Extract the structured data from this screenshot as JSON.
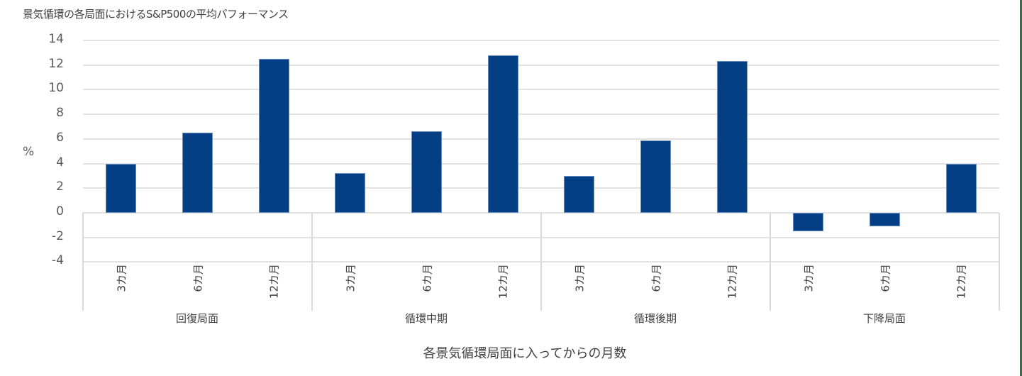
{
  "chart_data": {
    "type": "bar",
    "title": "景気循環の各局面におけるS&P500の平均パフォーマンス",
    "xlabel": "各景気循環局面に入ってからの月数",
    "ylabel": "%",
    "ylim": [
      -4,
      14
    ],
    "yticks": [
      "14",
      "12",
      "10",
      "8",
      "6",
      "4",
      "2",
      "0",
      "-2",
      "-4"
    ],
    "grid": true,
    "legend": "none",
    "bar_color": "#043f85",
    "groups": [
      "回復局面",
      "循環中期",
      "循環後期",
      "下降局面"
    ],
    "categories": [
      "3カ月",
      "6カ月",
      "12カ月",
      "3カ月",
      "6カ月",
      "12カ月",
      "3カ月",
      "6カ月",
      "12カ月",
      "3カ月",
      "6カ月",
      "12カ月"
    ],
    "values": [
      4.0,
      6.5,
      12.5,
      3.2,
      6.6,
      12.8,
      3.0,
      5.9,
      12.3,
      -1.5,
      -1.1,
      4.0
    ]
  }
}
